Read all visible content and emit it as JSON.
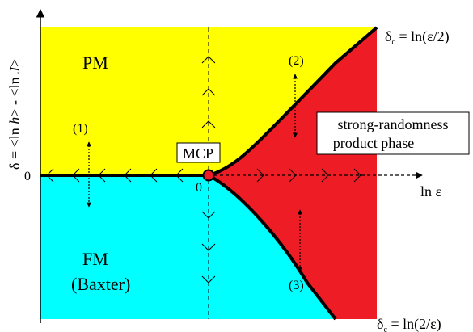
{
  "axes": {
    "y_label_prefix": "δ = <ln ",
    "y_label_h": "h",
    "y_label_mid": "> - <ln ",
    "y_label_J": "J",
    "y_label_suffix": ">",
    "x_label": "ln ε",
    "y_zero": "0",
    "x_zero": "0"
  },
  "regions": {
    "pm": "PM",
    "fm_line1": "FM",
    "fm_line2": "(Baxter)",
    "product_line1": "strong-randomness",
    "product_line2": "product phase"
  },
  "points": {
    "mcp": "MCP"
  },
  "boundaries": {
    "upper_delta": "δ",
    "upper_sub": "c",
    "upper_eq": " = ln(ε/2)",
    "lower_delta": "δ",
    "lower_sub": "c",
    "lower_eq": " = ln(2/ε)"
  },
  "markers": [
    "(1)",
    "(2)",
    "(3)"
  ],
  "colors": {
    "pm": "#ffff00",
    "fm": "#00ffff",
    "product": "#ee1c24",
    "mcp_dot": "#ee1c24",
    "line": "#000000"
  }
}
